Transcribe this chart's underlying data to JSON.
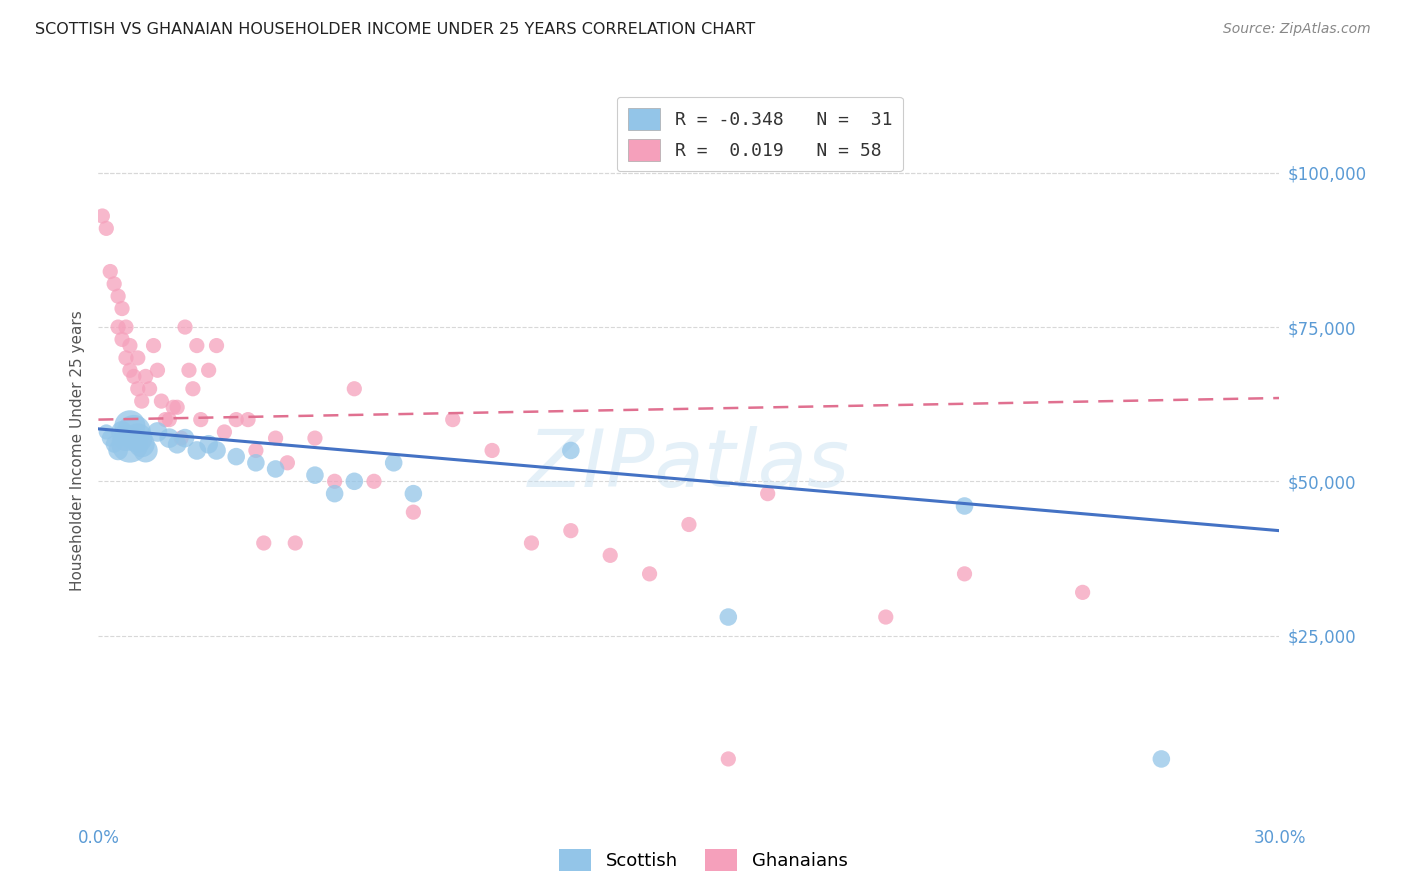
{
  "title": "SCOTTISH VS GHANAIAN HOUSEHOLDER INCOME UNDER 25 YEARS CORRELATION CHART",
  "source": "Source: ZipAtlas.com",
  "ylabel": "Householder Income Under 25 years",
  "background_color": "#ffffff",
  "grid_color": "#d8d8d8",
  "watermark": "ZIPatlas",
  "scottish_color": "#93c5e8",
  "ghanaian_color": "#f5a0bb",
  "scottish_line_color": "#4472c4",
  "ghanaian_line_color": "#e07090",
  "axis_color": "#5b9bd5",
  "ytick_values": [
    25000,
    50000,
    75000,
    100000
  ],
  "ytick_labels": [
    "$25,000",
    "$50,000",
    "$75,000",
    "$100,000"
  ],
  "xtick_values": [
    0.0,
    0.3
  ],
  "xtick_labels": [
    "0.0%",
    "30.0%"
  ],
  "xlim": [
    0.0,
    0.3
  ],
  "ylim": [
    -5000,
    115000
  ],
  "scottish_x": [
    0.002,
    0.003,
    0.004,
    0.005,
    0.006,
    0.007,
    0.008,
    0.008,
    0.009,
    0.01,
    0.011,
    0.012,
    0.015,
    0.018,
    0.02,
    0.022,
    0.025,
    0.028,
    0.03,
    0.035,
    0.04,
    0.045,
    0.055,
    0.06,
    0.065,
    0.075,
    0.08,
    0.12,
    0.16,
    0.22,
    0.27
  ],
  "scottish_y": [
    58000,
    57000,
    56000,
    55000,
    58000,
    57000,
    59000,
    56000,
    58000,
    57000,
    56000,
    55000,
    58000,
    57000,
    56000,
    57000,
    55000,
    56000,
    55000,
    54000,
    53000,
    52000,
    51000,
    48000,
    50000,
    53000,
    48000,
    55000,
    28000,
    46000,
    5000
  ],
  "scottish_sizes": [
    120,
    150,
    150,
    200,
    250,
    350,
    500,
    700,
    600,
    450,
    350,
    300,
    200,
    200,
    180,
    180,
    180,
    180,
    180,
    160,
    160,
    160,
    160,
    160,
    160,
    160,
    160,
    160,
    160,
    160,
    160
  ],
  "ghanaian_x": [
    0.001,
    0.002,
    0.003,
    0.004,
    0.005,
    0.005,
    0.006,
    0.006,
    0.007,
    0.007,
    0.008,
    0.008,
    0.009,
    0.01,
    0.01,
    0.011,
    0.012,
    0.013,
    0.014,
    0.015,
    0.016,
    0.017,
    0.018,
    0.019,
    0.02,
    0.021,
    0.022,
    0.023,
    0.024,
    0.025,
    0.026,
    0.028,
    0.03,
    0.032,
    0.035,
    0.038,
    0.04,
    0.042,
    0.045,
    0.048,
    0.05,
    0.055,
    0.06,
    0.065,
    0.07,
    0.08,
    0.09,
    0.1,
    0.11,
    0.12,
    0.13,
    0.14,
    0.15,
    0.16,
    0.17,
    0.2,
    0.22,
    0.25
  ],
  "ghanaian_y": [
    93000,
    91000,
    84000,
    82000,
    80000,
    75000,
    78000,
    73000,
    75000,
    70000,
    72000,
    68000,
    67000,
    70000,
    65000,
    63000,
    67000,
    65000,
    72000,
    68000,
    63000,
    60000,
    60000,
    62000,
    62000,
    57000,
    75000,
    68000,
    65000,
    72000,
    60000,
    68000,
    72000,
    58000,
    60000,
    60000,
    55000,
    40000,
    57000,
    53000,
    40000,
    57000,
    50000,
    65000,
    50000,
    45000,
    60000,
    55000,
    40000,
    42000,
    38000,
    35000,
    43000,
    5000,
    48000,
    28000,
    35000,
    32000
  ],
  "ghanaian_sizes": [
    120,
    120,
    120,
    120,
    120,
    120,
    120,
    120,
    120,
    120,
    120,
    120,
    120,
    120,
    120,
    120,
    120,
    120,
    120,
    120,
    120,
    120,
    120,
    120,
    120,
    120,
    120,
    120,
    120,
    120,
    120,
    120,
    120,
    120,
    120,
    120,
    120,
    120,
    120,
    120,
    120,
    120,
    120,
    120,
    120,
    120,
    120,
    120,
    120,
    120,
    120,
    120,
    120,
    120,
    120,
    120,
    120,
    120
  ],
  "sc_line_x0": 0.0,
  "sc_line_y0": 58500,
  "sc_line_x1": 0.3,
  "sc_line_y1": 42000,
  "gh_line_x0": 0.0,
  "gh_line_y0": 60000,
  "gh_line_x1": 0.3,
  "gh_line_y1": 63500
}
